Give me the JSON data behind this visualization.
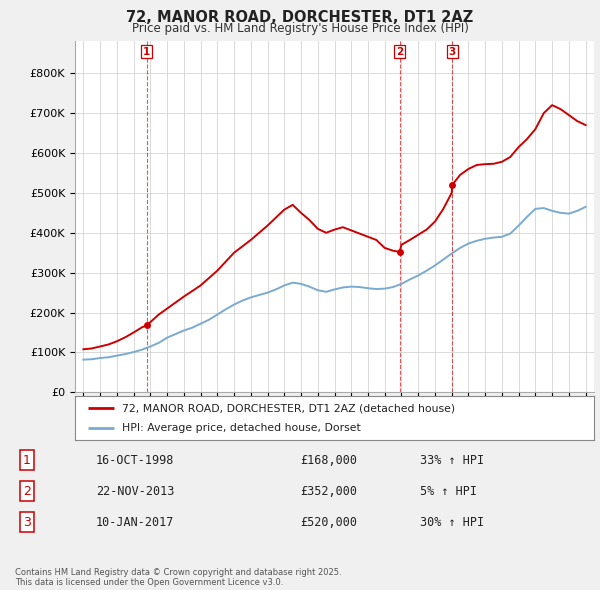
{
  "title": "72, MANOR ROAD, DORCHESTER, DT1 2AZ",
  "subtitle": "Price paid vs. HM Land Registry's House Price Index (HPI)",
  "legend_line1": "72, MANOR ROAD, DORCHESTER, DT1 2AZ (detached house)",
  "legend_line2": "HPI: Average price, detached house, Dorset",
  "t_years": [
    1998.79,
    2013.89,
    2017.03
  ],
  "t_prices": [
    168000,
    352000,
    520000
  ],
  "t_labels": [
    "1",
    "2",
    "3"
  ],
  "t_dates": [
    "16-OCT-1998",
    "22-NOV-2013",
    "10-JAN-2017"
  ],
  "t_price_strs": [
    "£168,000",
    "£352,000",
    "£520,000"
  ],
  "t_hpi_strs": [
    "33% ↑ HPI",
    "5% ↑ HPI",
    "30% ↑ HPI"
  ],
  "footnote": "Contains HM Land Registry data © Crown copyright and database right 2025.\nThis data is licensed under the Open Government Licence v3.0.",
  "price_color": "#cc0000",
  "hpi_color": "#7aaad0",
  "vline_color": "#cc0000",
  "background_color": "#f0f0f0",
  "plot_bg_color": "#ffffff",
  "ylim": [
    0,
    880000
  ],
  "yticks": [
    0,
    100000,
    200000,
    300000,
    400000,
    500000,
    600000,
    700000,
    800000
  ],
  "xlim_start": 1994.5,
  "xlim_end": 2025.5,
  "hpi_years": [
    1995,
    1995.5,
    1996,
    1996.5,
    1997,
    1997.5,
    1998,
    1998.5,
    1999,
    1999.5,
    2000,
    2000.5,
    2001,
    2001.5,
    2002,
    2002.5,
    2003,
    2003.5,
    2004,
    2004.5,
    2005,
    2005.5,
    2006,
    2006.5,
    2007,
    2007.5,
    2008,
    2008.5,
    2009,
    2009.5,
    2010,
    2010.5,
    2011,
    2011.5,
    2012,
    2012.5,
    2013,
    2013.5,
    2014,
    2014.5,
    2015,
    2015.5,
    2016,
    2016.5,
    2017,
    2017.5,
    2018,
    2018.5,
    2019,
    2019.5,
    2020,
    2020.5,
    2021,
    2021.5,
    2022,
    2022.5,
    2023,
    2023.5,
    2024,
    2024.5,
    2025
  ],
  "hpi_vals": [
    82000,
    83000,
    86000,
    88000,
    92000,
    96000,
    101000,
    107000,
    115000,
    124000,
    137000,
    146000,
    155000,
    162000,
    172000,
    182000,
    195000,
    208000,
    220000,
    230000,
    238000,
    244000,
    250000,
    258000,
    268000,
    275000,
    272000,
    265000,
    256000,
    252000,
    258000,
    263000,
    265000,
    264000,
    261000,
    259000,
    260000,
    264000,
    272000,
    283000,
    293000,
    305000,
    318000,
    333000,
    348000,
    362000,
    373000,
    380000,
    385000,
    388000,
    390000,
    398000,
    418000,
    440000,
    460000,
    462000,
    455000,
    450000,
    448000,
    455000,
    465000
  ],
  "red_years": [
    1995,
    1995.5,
    1996,
    1996.5,
    1997,
    1997.5,
    1998,
    1998.5,
    1998.79,
    1999.5,
    2001,
    2002,
    2003,
    2004,
    2005,
    2006,
    2007,
    2007.5,
    2008,
    2008.5,
    2009,
    2009.5,
    2010,
    2010.5,
    2011,
    2011.5,
    2012,
    2012.5,
    2013,
    2013.5,
    2013.89,
    2014,
    2014.5,
    2015,
    2015.5,
    2016,
    2016.5,
    2017,
    2017.03,
    2017.5,
    2018,
    2018.5,
    2019,
    2019.5,
    2020,
    2020.5,
    2021,
    2021.5,
    2022,
    2022.5,
    2023,
    2023.5,
    2024,
    2024.5,
    2025
  ],
  "red_vals": [
    108000,
    110000,
    115000,
    120000,
    128000,
    138000,
    150000,
    163000,
    168000,
    195000,
    240000,
    268000,
    305000,
    350000,
    382000,
    418000,
    458000,
    470000,
    450000,
    432000,
    410000,
    400000,
    408000,
    414000,
    406000,
    398000,
    390000,
    382000,
    362000,
    355000,
    352000,
    370000,
    382000,
    395000,
    408000,
    428000,
    460000,
    500000,
    520000,
    545000,
    560000,
    570000,
    572000,
    573000,
    578000,
    590000,
    615000,
    635000,
    660000,
    700000,
    720000,
    710000,
    695000,
    680000,
    670000
  ]
}
